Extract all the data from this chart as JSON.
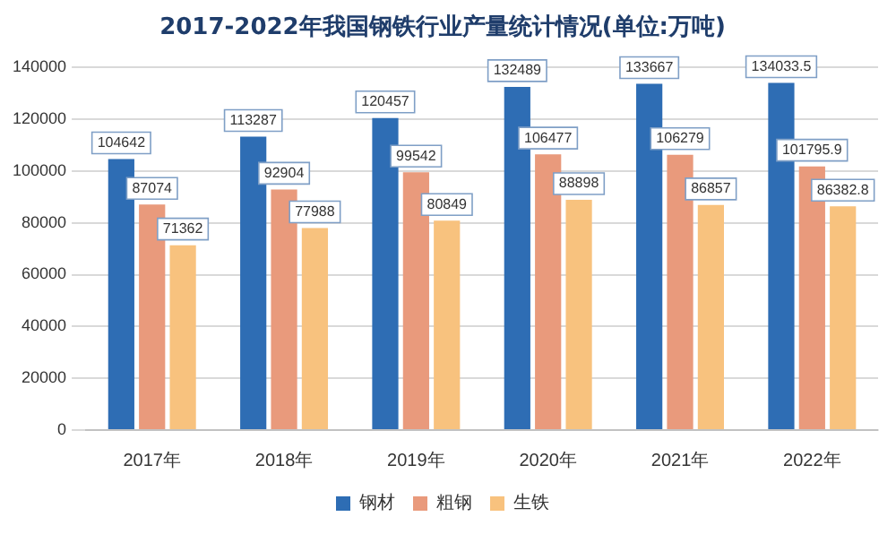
{
  "chart_data": {
    "type": "bar",
    "title": "2017-2022年我国钢铁行业产量统计情况(单位:万吨)",
    "categories": [
      "2017年",
      "2018年",
      "2019年",
      "2020年",
      "2021年",
      "2022年"
    ],
    "series": [
      {
        "name": "钢材",
        "color": "#2e6db4",
        "values": [
          104642,
          113287,
          120457,
          132489,
          133667,
          134033.5
        ]
      },
      {
        "name": "粗钢",
        "color": "#e99a7c",
        "values": [
          87074,
          92904,
          99542,
          106477,
          106279,
          101795.9
        ]
      },
      {
        "name": "生铁",
        "color": "#f8c27e",
        "values": [
          71362,
          77988,
          80849,
          88898,
          86857,
          86382.8
        ]
      }
    ],
    "ylim": [
      0,
      140000
    ],
    "yticks": [
      0,
      20000,
      40000,
      60000,
      80000,
      100000,
      120000,
      140000
    ],
    "grid": "y",
    "legend": "bottom",
    "data_labels": true
  }
}
